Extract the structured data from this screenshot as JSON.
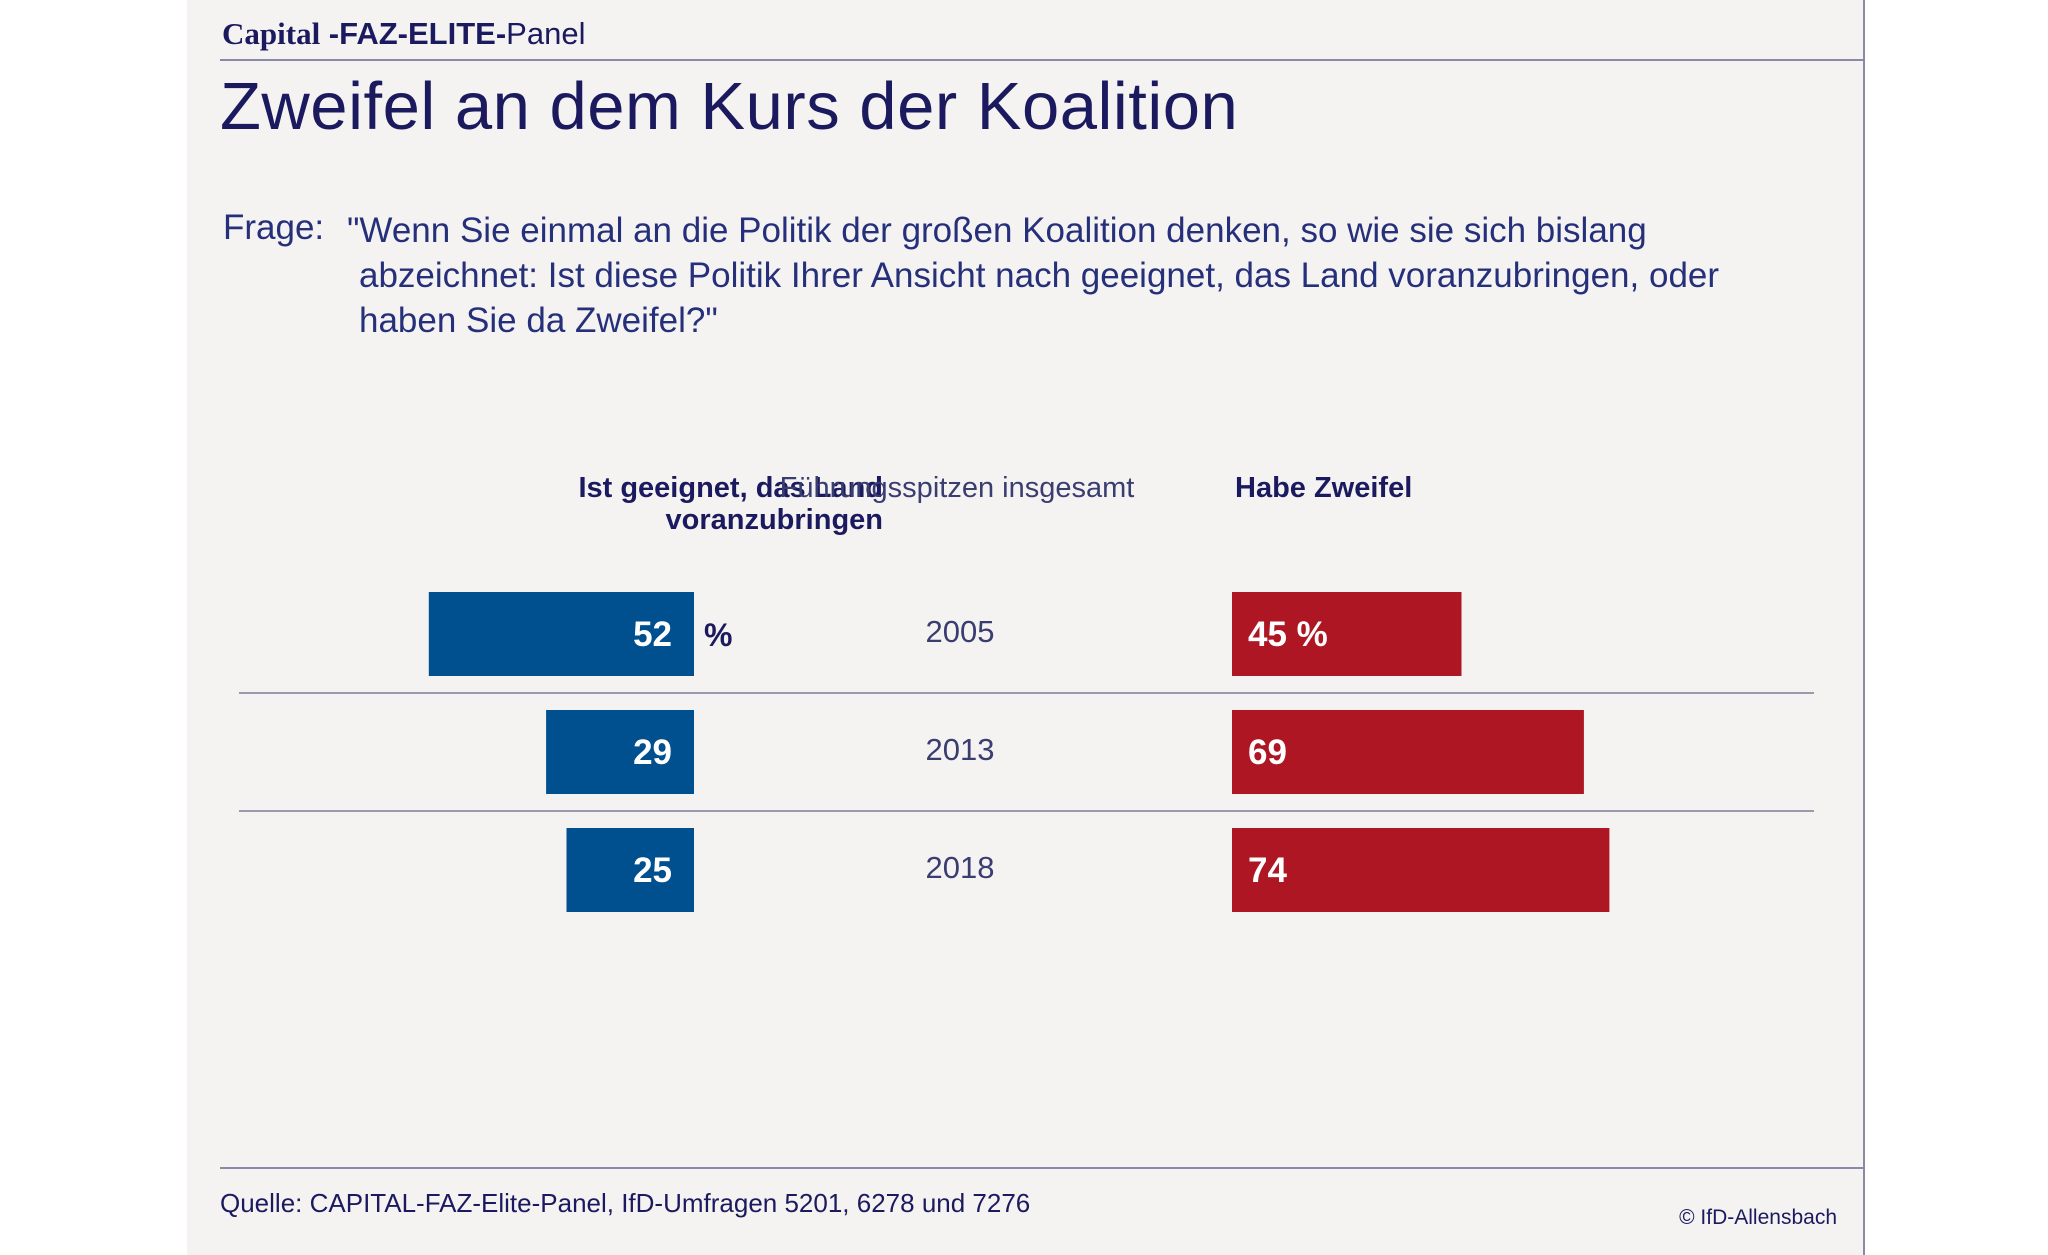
{
  "header": {
    "brand_capital": "Capital",
    "brand_faz": " -FAZ-ELITE-",
    "brand_panel": "Panel",
    "title": "Zweifel an dem Kurs der Koalition"
  },
  "question": {
    "label": "Frage:",
    "text": "\"Wenn Sie einmal an die Politik der großen Koalition denken, so wie sie sich bislang abzeichnet: Ist diese Politik Ihrer Ansicht nach geeignet, das Land voranzubringen, oder haben Sie da Zweifel?\""
  },
  "chart_data": {
    "type": "bar",
    "orientation": "horizontal-diverging",
    "column_heads": {
      "left": "Ist geeignet, das Land voranzubringen",
      "center": "Führungsspitzen insgesamt",
      "right": "Habe Zweifel"
    },
    "categories": [
      "2005",
      "2013",
      "2018"
    ],
    "series": [
      {
        "name": "Ist geeignet, das Land voranzubringen",
        "values": [
          52,
          29,
          25
        ],
        "color": "#00508f",
        "direction": "left"
      },
      {
        "name": "Habe Zweifel",
        "values": [
          45,
          69,
          74
        ],
        "color": "#ad1622",
        "direction": "right"
      }
    ],
    "unit": "%",
    "xlim": [
      0,
      100
    ]
  },
  "footer": {
    "source": "Quelle: CAPITAL-FAZ-Elite-Panel, IfD-Umfragen 5201, 6278 und 7276",
    "copyright": "© IfD-Allensbach"
  }
}
